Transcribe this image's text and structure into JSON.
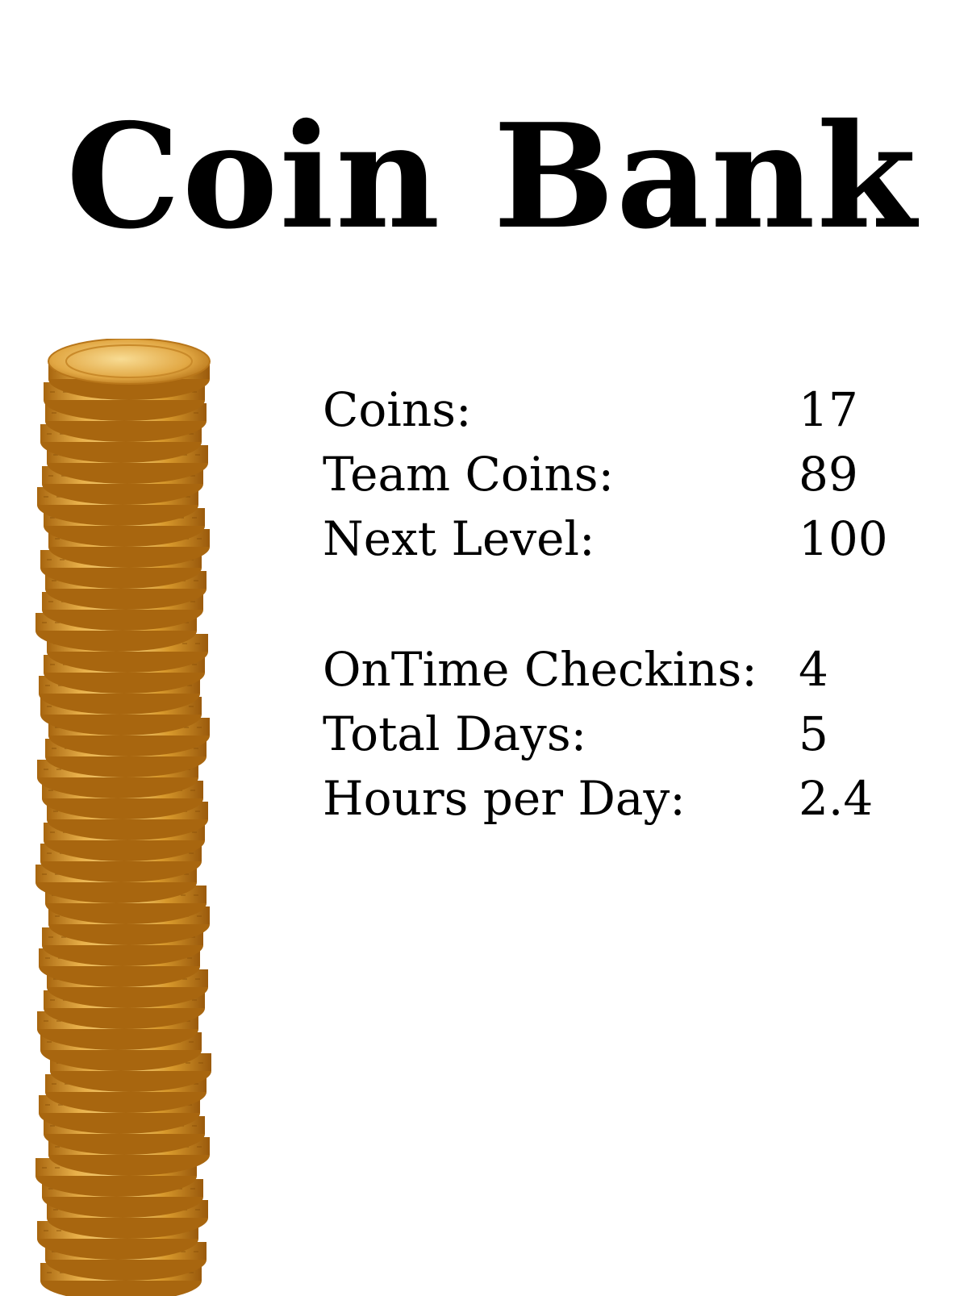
{
  "title": "Coin Bank",
  "image": {
    "icon": "coin-stack-icon",
    "colors": {
      "coin_light": "#f3c766",
      "coin_mid": "#d89a2c",
      "coin_dark": "#a8660f"
    }
  },
  "stats_primary": [
    {
      "label": "Coins:",
      "value": "17"
    },
    {
      "label": "Team Coins:",
      "value": "89"
    },
    {
      "label": "Next Level:",
      "value": "100"
    }
  ],
  "stats_secondary": [
    {
      "label": "OnTime Checkins:",
      "value": "4"
    },
    {
      "label": "Total Days:",
      "value": "5"
    },
    {
      "label": "Hours per Day:",
      "value": "2.4"
    }
  ]
}
